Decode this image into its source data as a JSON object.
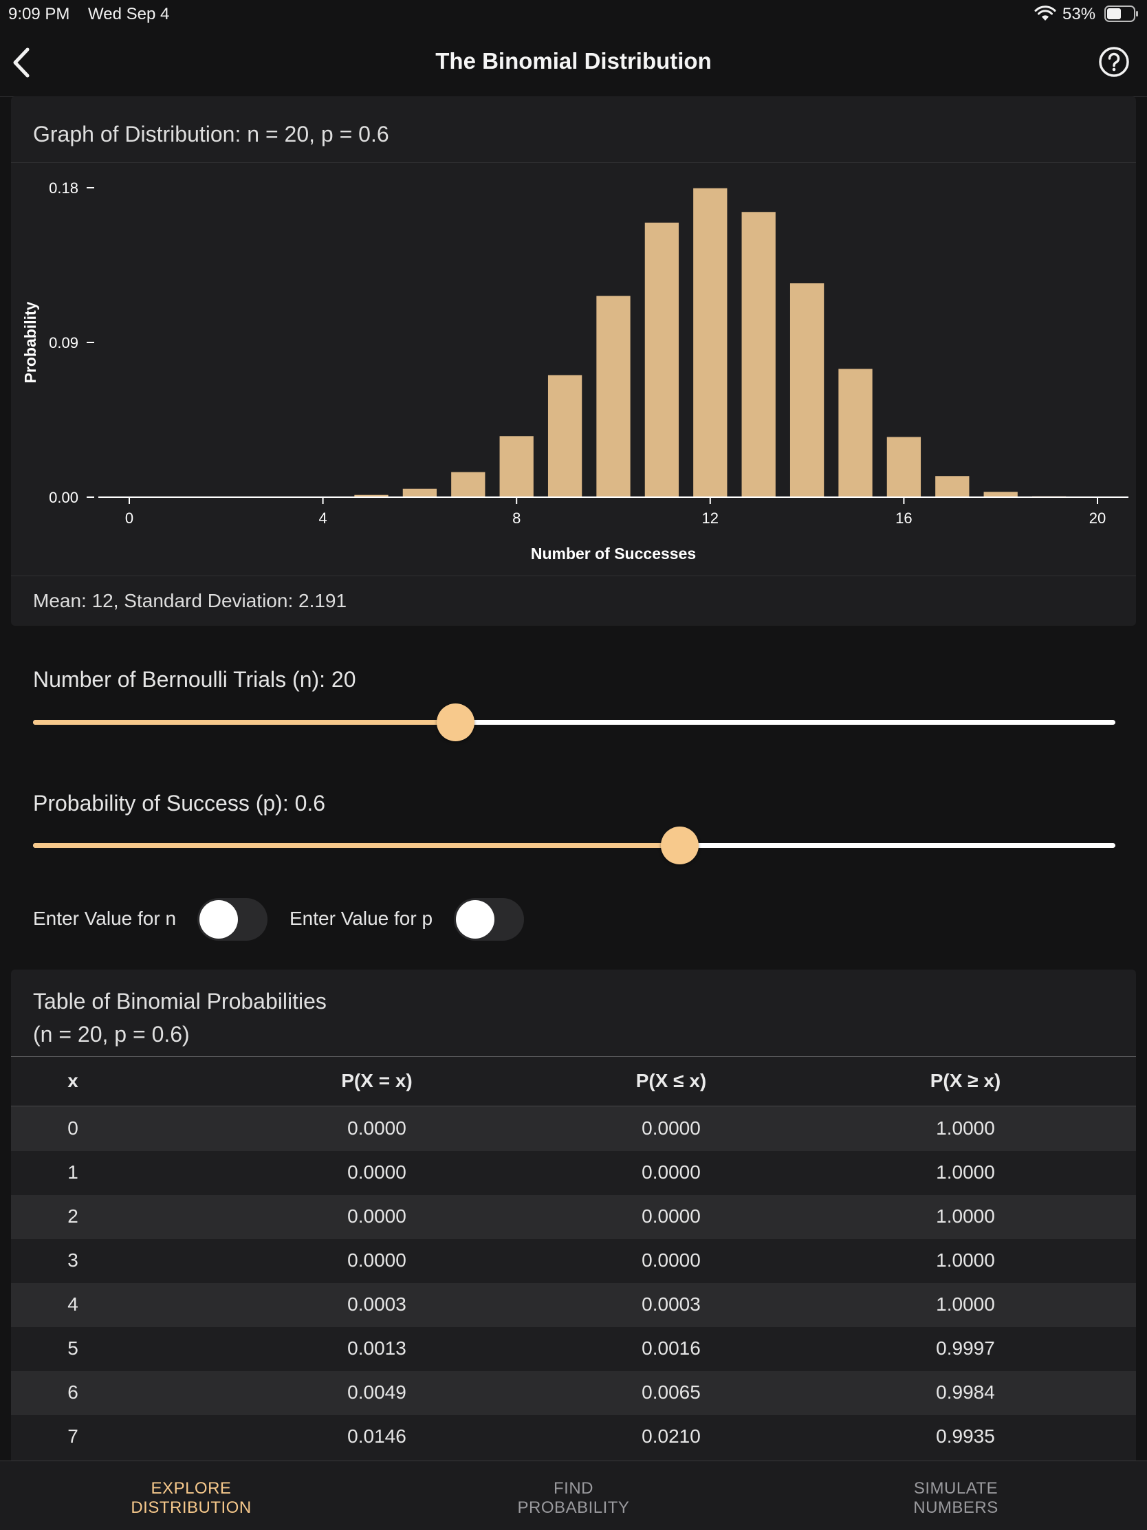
{
  "status_bar": {
    "time": "9:09 PM",
    "date": "Wed Sep 4",
    "battery": "53%"
  },
  "nav": {
    "title": "The Binomial Distribution"
  },
  "graph": {
    "heading": "Graph of Distribution: n = 20, p = 0.6",
    "stats": "Mean: 12, Standard Deviation: 2.191"
  },
  "chart_data": {
    "type": "bar",
    "xlabel": "Number of Successes",
    "ylabel": "Probability",
    "xlim": [
      0,
      20
    ],
    "ylim": [
      0,
      0.18
    ],
    "x_ticks": [
      "0",
      "4",
      "8",
      "12",
      "16",
      "20"
    ],
    "y_ticks": [
      "0.18",
      "0.09",
      "0.00"
    ],
    "bar_color": "#dcb887",
    "x": [
      0,
      1,
      2,
      3,
      4,
      5,
      6,
      7,
      8,
      9,
      10,
      11,
      12,
      13,
      14,
      15,
      16,
      17,
      18,
      19,
      20
    ],
    "values": [
      0.0,
      0.0,
      0.0,
      0.0,
      0.0003,
      0.0013,
      0.0049,
      0.0146,
      0.0355,
      0.071,
      0.1171,
      0.1597,
      0.1797,
      0.1659,
      0.1244,
      0.0746,
      0.035,
      0.0123,
      0.0031,
      0.0005,
      0.0
    ]
  },
  "sliders": {
    "n": {
      "label": "Number of Bernoulli Trials (n): 20",
      "fraction": 0.39
    },
    "p": {
      "label": "Probability of Success (p): 0.6",
      "fraction": 0.597
    }
  },
  "toggles": {
    "n_label": "Enter Value for n",
    "p_label": "Enter Value for p"
  },
  "table": {
    "title_line1": "Table of Binomial Probabilities",
    "title_line2": "(n = 20, p = 0.6)",
    "headers": [
      "x",
      "P(X = x)",
      "P(X ≤ x)",
      "P(X ≥ x)"
    ],
    "rows": [
      [
        "0",
        "0.0000",
        "0.0000",
        "1.0000"
      ],
      [
        "1",
        "0.0000",
        "0.0000",
        "1.0000"
      ],
      [
        "2",
        "0.0000",
        "0.0000",
        "1.0000"
      ],
      [
        "3",
        "0.0000",
        "0.0000",
        "1.0000"
      ],
      [
        "4",
        "0.0003",
        "0.0003",
        "1.0000"
      ],
      [
        "5",
        "0.0013",
        "0.0016",
        "0.9997"
      ],
      [
        "6",
        "0.0049",
        "0.0065",
        "0.9984"
      ],
      [
        "7",
        "0.0146",
        "0.0210",
        "0.9935"
      ]
    ]
  },
  "tabs": [
    {
      "line1": "EXPLORE",
      "line2": "DISTRIBUTION",
      "active": true
    },
    {
      "line1": "FIND",
      "line2": "PROBABILITY",
      "active": false
    },
    {
      "line1": "SIMULATE",
      "line2": "NUMBERS",
      "active": false
    }
  ],
  "colors": {
    "accent": "#f7c98c",
    "bar": "#dcb887",
    "background": "#131314",
    "card": "#1e1e20"
  }
}
